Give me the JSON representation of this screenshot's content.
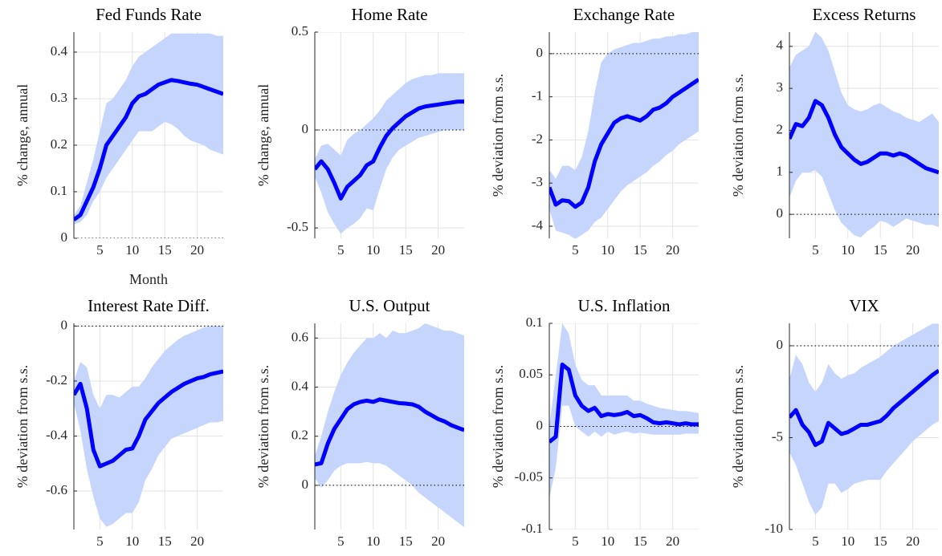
{
  "chart_data": [
    {
      "type": "line",
      "title": "Fed Funds Rate",
      "ylabel": "% change, annual",
      "xlabel": "Month",
      "x": [
        1,
        2,
        3,
        4,
        5,
        6,
        7,
        8,
        9,
        10,
        11,
        12,
        13,
        14,
        15,
        16,
        17,
        18,
        19,
        20,
        21,
        22,
        23,
        24
      ],
      "values": [
        0.04,
        0.05,
        0.08,
        0.11,
        0.15,
        0.2,
        0.22,
        0.24,
        0.26,
        0.29,
        0.305,
        0.31,
        0.32,
        0.33,
        0.335,
        0.34,
        0.338,
        0.335,
        0.332,
        0.33,
        0.325,
        0.32,
        0.315,
        0.31
      ],
      "band": {
        "upper": [
          0.05,
          0.07,
          0.12,
          0.17,
          0.23,
          0.29,
          0.3,
          0.32,
          0.34,
          0.37,
          0.39,
          0.4,
          0.41,
          0.42,
          0.43,
          0.44,
          0.44,
          0.44,
          0.44,
          0.44,
          0.44,
          0.44,
          0.435,
          0.435
        ],
        "lower": [
          0.03,
          0.035,
          0.05,
          0.08,
          0.1,
          0.13,
          0.15,
          0.17,
          0.19,
          0.21,
          0.23,
          0.23,
          0.23,
          0.24,
          0.25,
          0.245,
          0.235,
          0.22,
          0.21,
          0.205,
          0.2,
          0.19,
          0.185,
          0.18
        ]
      },
      "color": "#0000ff",
      "band_color": "#c5d5fc",
      "ref_line": 0,
      "grid": true,
      "xlim": [
        1,
        24
      ],
      "xticks": [
        5,
        10,
        15,
        20
      ],
      "ylim": [
        0,
        0.443
      ],
      "yticks": [
        0,
        0.1,
        0.2,
        0.3,
        0.4
      ]
    },
    {
      "type": "line",
      "title": "Home Rate",
      "ylabel": "% change, annual",
      "x": [
        1,
        2,
        3,
        4,
        5,
        6,
        7,
        8,
        9,
        10,
        11,
        12,
        13,
        14,
        15,
        16,
        17,
        18,
        19,
        20,
        21,
        22,
        23,
        24
      ],
      "values": [
        -0.2,
        -0.16,
        -0.2,
        -0.27,
        -0.35,
        -0.29,
        -0.26,
        -0.23,
        -0.18,
        -0.16,
        -0.09,
        -0.03,
        0.01,
        0.04,
        0.07,
        0.09,
        0.11,
        0.12,
        0.125,
        0.13,
        0.135,
        0.14,
        0.145,
        0.145
      ],
      "band": {
        "upper": [
          -0.15,
          -0.08,
          -0.07,
          -0.1,
          -0.13,
          -0.05,
          -0.02,
          0,
          0.03,
          0.06,
          0.1,
          0.15,
          0.18,
          0.21,
          0.24,
          0.26,
          0.27,
          0.28,
          0.28,
          0.29,
          0.29,
          0.29,
          0.29,
          0.29
        ],
        "lower": [
          -0.24,
          -0.32,
          -0.42,
          -0.48,
          -0.53,
          -0.5,
          -0.48,
          -0.45,
          -0.4,
          -0.41,
          -0.3,
          -0.2,
          -0.14,
          -0.1,
          -0.08,
          -0.06,
          -0.04,
          -0.03,
          -0.02,
          -0.01,
          0,
          0,
          0,
          0
        ]
      },
      "color": "#0000ff",
      "band_color": "#c5d5fc",
      "ref_line": 0,
      "grid": true,
      "xlim": [
        1,
        24
      ],
      "xticks": [
        5,
        10,
        15,
        20
      ],
      "ylim": [
        -0.553,
        0.5
      ],
      "yticks": [
        -0.5,
        0,
        0.5
      ]
    },
    {
      "type": "line",
      "title": "Exchange Rate",
      "ylabel": "% deviation from s.s.",
      "x": [
        1,
        2,
        3,
        4,
        5,
        6,
        7,
        8,
        9,
        10,
        11,
        12,
        13,
        14,
        15,
        16,
        17,
        18,
        19,
        20,
        21,
        22,
        23,
        24
      ],
      "values": [
        -3.1,
        -3.5,
        -3.4,
        -3.42,
        -3.55,
        -3.45,
        -3.1,
        -2.5,
        -2.1,
        -1.85,
        -1.6,
        -1.5,
        -1.45,
        -1.5,
        -1.55,
        -1.45,
        -1.3,
        -1.25,
        -1.15,
        -1,
        -0.9,
        -0.8,
        -0.7,
        -0.6
      ],
      "band": {
        "upper": [
          -2.7,
          -2.9,
          -2.6,
          -2.6,
          -2.7,
          -2.4,
          -1.8,
          -0.9,
          -0.2,
          0,
          0.1,
          0.15,
          0.2,
          0.25,
          0.25,
          0.3,
          0.35,
          0.35,
          0.4,
          0.4,
          0.45,
          0.45,
          0.5,
          0.5
        ],
        "lower": [
          -3.6,
          -4.1,
          -4.15,
          -4.2,
          -4.3,
          -4.2,
          -4.1,
          -3.9,
          -3.8,
          -3.6,
          -3.4,
          -3.2,
          -3.05,
          -2.95,
          -2.85,
          -2.75,
          -2.6,
          -2.5,
          -2.35,
          -2.25,
          -2.1,
          -2,
          -1.9,
          -1.8
        ]
      },
      "color": "#0000ff",
      "band_color": "#c5d5fc",
      "ref_line": 0,
      "grid": true,
      "xlim": [
        1,
        24
      ],
      "xticks": [
        5,
        10,
        15,
        20
      ],
      "ylim": [
        -4.28,
        0.5
      ],
      "yticks": [
        -4,
        -3,
        -2,
        -1,
        0
      ]
    },
    {
      "type": "line",
      "title": "Excess Returns",
      "ylabel": "% deviation from s.s.",
      "x": [
        1,
        2,
        3,
        4,
        5,
        6,
        7,
        8,
        9,
        10,
        11,
        12,
        13,
        14,
        15,
        16,
        17,
        18,
        19,
        20,
        21,
        22,
        23,
        24
      ],
      "values": [
        1.8,
        2.15,
        2.1,
        2.3,
        2.7,
        2.6,
        2.3,
        1.9,
        1.6,
        1.45,
        1.3,
        1.2,
        1.25,
        1.35,
        1.45,
        1.45,
        1.4,
        1.45,
        1.4,
        1.3,
        1.2,
        1.1,
        1.05,
        1
      ],
      "band": {
        "upper": [
          3.5,
          3.8,
          3.9,
          4,
          4.35,
          4.2,
          3.9,
          3.4,
          2.9,
          2.6,
          2.5,
          2.45,
          2.5,
          2.6,
          2.65,
          2.55,
          2.45,
          2.4,
          2.3,
          2.25,
          2.2,
          2.3,
          2.4,
          2.2
        ],
        "lower": [
          0.4,
          0.8,
          1,
          1,
          1.05,
          0.9,
          0.5,
          0.1,
          -0.2,
          -0.35,
          -0.5,
          -0.55,
          -0.4,
          -0.3,
          -0.15,
          -0.2,
          -0.3,
          -0.2,
          -0.1,
          -0.15,
          -0.2,
          -0.25,
          -0.25,
          -0.3
        ]
      },
      "color": "#0000ff",
      "band_color": "#c5d5fc",
      "ref_line": 0,
      "grid": true,
      "xlim": [
        1,
        24
      ],
      "xticks": [
        5,
        10,
        15,
        20
      ],
      "ylim": [
        -0.57,
        4.34
      ],
      "yticks": [
        0,
        1,
        2,
        3,
        4
      ]
    },
    {
      "type": "line",
      "title": "Interest Rate Diff.",
      "ylabel": "% deviation from s.s.",
      "x": [
        1,
        2,
        3,
        4,
        5,
        6,
        7,
        8,
        9,
        10,
        11,
        12,
        13,
        14,
        15,
        16,
        17,
        18,
        19,
        20,
        21,
        22,
        23,
        24
      ],
      "values": [
        -0.25,
        -0.21,
        -0.3,
        -0.45,
        -0.51,
        -0.5,
        -0.49,
        -0.47,
        -0.45,
        -0.445,
        -0.4,
        -0.34,
        -0.31,
        -0.28,
        -0.26,
        -0.24,
        -0.225,
        -0.21,
        -0.2,
        -0.19,
        -0.185,
        -0.175,
        -0.17,
        -0.165
      ],
      "band": {
        "upper": [
          -0.2,
          -0.13,
          -0.15,
          -0.25,
          -0.3,
          -0.25,
          -0.25,
          -0.26,
          -0.24,
          -0.22,
          -0.22,
          -0.19,
          -0.15,
          -0.12,
          -0.09,
          -0.07,
          -0.05,
          -0.035,
          -0.025,
          -0.015,
          -0.005,
          0,
          0,
          0
        ],
        "lower": [
          -0.28,
          -0.38,
          -0.52,
          -0.62,
          -0.7,
          -0.73,
          -0.72,
          -0.7,
          -0.68,
          -0.68,
          -0.64,
          -0.56,
          -0.52,
          -0.47,
          -0.44,
          -0.41,
          -0.4,
          -0.39,
          -0.38,
          -0.37,
          -0.36,
          -0.35,
          -0.35,
          -0.345
        ]
      },
      "color": "#0000ff",
      "band_color": "#c5d5fc",
      "ref_line": 0,
      "grid": true,
      "xlim": [
        1,
        24
      ],
      "xticks": [
        5,
        10,
        15,
        20
      ],
      "ylim": [
        -0.74,
        0.01
      ],
      "yticks": [
        -0.6,
        -0.4,
        -0.2,
        0
      ]
    },
    {
      "type": "line",
      "title": "U.S. Output",
      "ylabel": "% deviation from s.s.",
      "x": [
        1,
        2,
        3,
        4,
        5,
        6,
        7,
        8,
        9,
        10,
        11,
        12,
        13,
        14,
        15,
        16,
        17,
        18,
        19,
        20,
        21,
        22,
        23,
        24
      ],
      "values": [
        0.085,
        0.09,
        0.17,
        0.23,
        0.27,
        0.31,
        0.33,
        0.34,
        0.345,
        0.34,
        0.35,
        0.345,
        0.34,
        0.335,
        0.333,
        0.33,
        0.32,
        0.3,
        0.285,
        0.27,
        0.26,
        0.245,
        0.235,
        0.225
      ],
      "band": {
        "upper": [
          0.12,
          0.2,
          0.3,
          0.38,
          0.45,
          0.5,
          0.54,
          0.57,
          0.6,
          0.6,
          0.62,
          0.6,
          0.63,
          0.62,
          0.62,
          0.63,
          0.64,
          0.66,
          0.65,
          0.64,
          0.63,
          0.63,
          0.62,
          0.61
        ],
        "lower": [
          0.03,
          -0.01,
          0.02,
          0.06,
          0.08,
          0.09,
          0.09,
          0.09,
          0.095,
          0.09,
          0.09,
          0.08,
          0.06,
          0.04,
          0.02,
          0,
          -0.03,
          -0.05,
          -0.07,
          -0.09,
          -0.11,
          -0.13,
          -0.15,
          -0.17
        ]
      },
      "color": "#0000ff",
      "band_color": "#c5d5fc",
      "ref_line": 0,
      "grid": true,
      "xlim": [
        1,
        24
      ],
      "xticks": [
        5,
        10,
        15,
        20
      ],
      "ylim": [
        -0.18,
        0.66
      ],
      "yticks": [
        0,
        0.2,
        0.4,
        0.6
      ]
    },
    {
      "type": "line",
      "title": "U.S. Inflation",
      "ylabel": "% deviation from s.s.",
      "x": [
        1,
        2,
        3,
        4,
        5,
        6,
        7,
        8,
        9,
        10,
        11,
        12,
        13,
        14,
        15,
        16,
        17,
        18,
        19,
        20,
        21,
        22,
        23,
        24
      ],
      "values": [
        -0.015,
        -0.01,
        0.06,
        0.055,
        0.03,
        0.02,
        0.015,
        0.018,
        0.01,
        0.012,
        0.011,
        0.012,
        0.014,
        0.01,
        0.011,
        0.008,
        0.004,
        0.003,
        0.004,
        0.003,
        0.002,
        0.003,
        0.002,
        0.002
      ],
      "band": {
        "upper": [
          0,
          0.05,
          0.1,
          0.09,
          0.06,
          0.045,
          0.04,
          0.04,
          0.03,
          0.03,
          0.03,
          0.03,
          0.03,
          0.025,
          0.025,
          0.022,
          0.02,
          0.018,
          0.017,
          0.016,
          0.015,
          0.015,
          0.014,
          0.013
        ],
        "lower": [
          -0.07,
          -0.04,
          0.02,
          0.02,
          0,
          -0.005,
          -0.01,
          -0.005,
          -0.01,
          -0.005,
          -0.008,
          -0.006,
          -0.005,
          -0.007,
          -0.006,
          -0.007,
          -0.008,
          -0.008,
          -0.008,
          -0.008,
          -0.008,
          -0.007,
          -0.007,
          -0.007
        ]
      },
      "color": "#0000ff",
      "band_color": "#c5d5fc",
      "ref_line": 0,
      "grid": true,
      "xlim": [
        1,
        24
      ],
      "xticks": [
        5,
        10,
        15,
        20
      ],
      "ylim": [
        -0.1,
        0.1
      ],
      "yticks": [
        -0.1,
        -0.05,
        0,
        0.05,
        0.1
      ]
    },
    {
      "type": "line",
      "title": "VIX",
      "ylabel": "% deviation from s.s.",
      "x": [
        1,
        2,
        3,
        4,
        5,
        6,
        7,
        8,
        9,
        10,
        11,
        12,
        13,
        14,
        15,
        16,
        17,
        18,
        19,
        20,
        21,
        22,
        23,
        24
      ],
      "values": [
        -3.9,
        -3.5,
        -4.3,
        -4.7,
        -5.4,
        -5.2,
        -4.2,
        -4.5,
        -4.8,
        -4.7,
        -4.5,
        -4.3,
        -4.3,
        -4.2,
        -4.1,
        -3.8,
        -3.4,
        -3.1,
        -2.8,
        -2.5,
        -2.2,
        -1.9,
        -1.6,
        -1.35
      ],
      "band": {
        "upper": [
          -1.8,
          -0.5,
          -1,
          -2,
          -2.5,
          -2,
          -1,
          -1.5,
          -1.8,
          -1.6,
          -1.5,
          -1.2,
          -1,
          -0.8,
          -0.6,
          -0.3,
          0,
          0.2,
          0.4,
          0.6,
          0.8,
          1,
          1.2,
          1.2
        ],
        "lower": [
          -5.8,
          -6.5,
          -7.5,
          -8.5,
          -9.2,
          -8.8,
          -7.5,
          -7.5,
          -8,
          -7.8,
          -7.5,
          -7.4,
          -7.3,
          -7.3,
          -7.3,
          -6.8,
          -6.4,
          -6,
          -5.6,
          -5.2,
          -4.9,
          -4.6,
          -4.3,
          -4.1
        ]
      },
      "color": "#0000ff",
      "band_color": "#c5d5fc",
      "ref_line": 0,
      "grid": true,
      "xlim": [
        1,
        24
      ],
      "xticks": [
        5,
        10,
        15,
        20
      ],
      "ylim": [
        -10,
        1.22
      ],
      "yticks": [
        -10,
        -5,
        0
      ]
    }
  ]
}
